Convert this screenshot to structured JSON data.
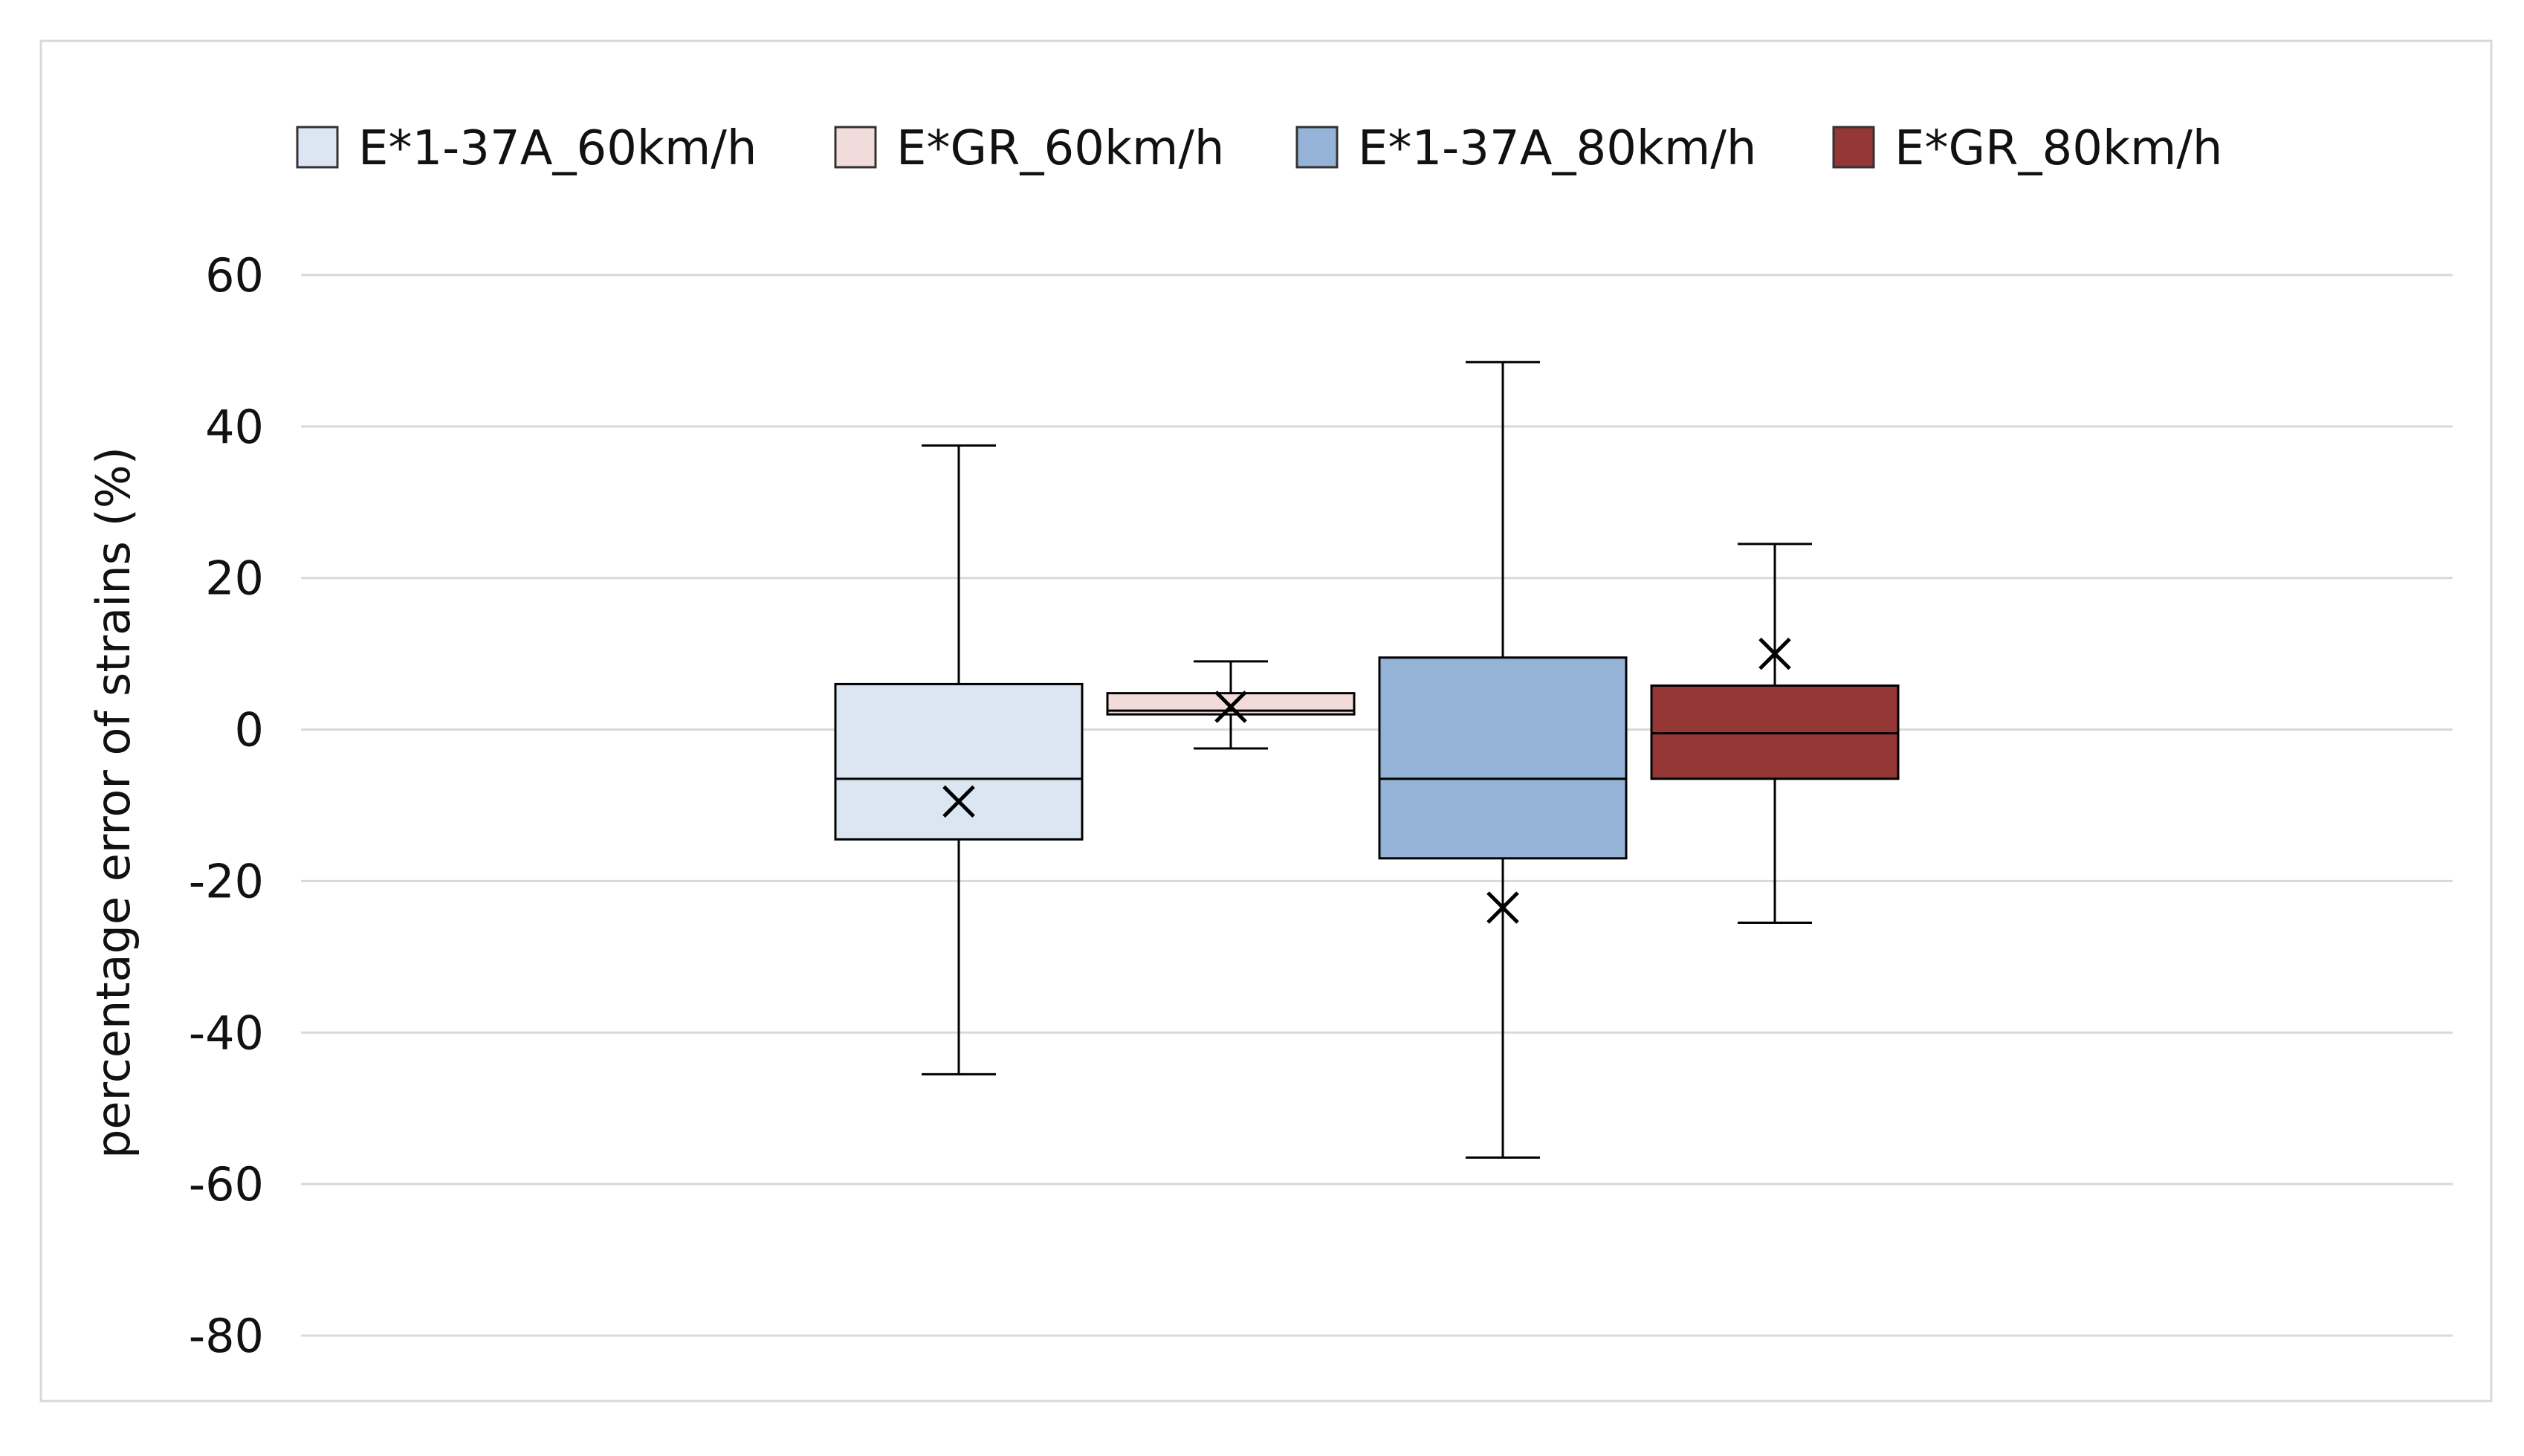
{
  "chart_data": {
    "type": "box",
    "ylabel": "percentage error of strains (%)",
    "ylim": [
      -80,
      60
    ],
    "yticks": [
      60,
      40,
      20,
      0,
      -20,
      -40,
      -60,
      -80
    ],
    "grid": true,
    "legend_position": "top",
    "series": [
      {
        "name": "E*1-37A_60km/h",
        "color": "#dce6f2",
        "min": -45.5,
        "q1": -14.5,
        "median": -6.5,
        "q3": 6.0,
        "max": 37.5,
        "mean": -9.5
      },
      {
        "name": "E*GR_60km/h",
        "color": "#f2dcdb",
        "min": -2.5,
        "q1": 2.0,
        "median": 2.5,
        "q3": 4.8,
        "max": 9.0,
        "mean": 3.0
      },
      {
        "name": "E*1-37A_80km/h",
        "color": "#95b3d7",
        "min": -56.5,
        "q1": -17.0,
        "median": -6.5,
        "q3": 9.5,
        "max": 48.5,
        "mean": -23.5
      },
      {
        "name": "E*GR_80km/h",
        "color": "#953735",
        "min": -25.5,
        "q1": -6.5,
        "median": -0.5,
        "q3": 5.8,
        "max": 24.5,
        "mean": 10.0
      }
    ]
  }
}
